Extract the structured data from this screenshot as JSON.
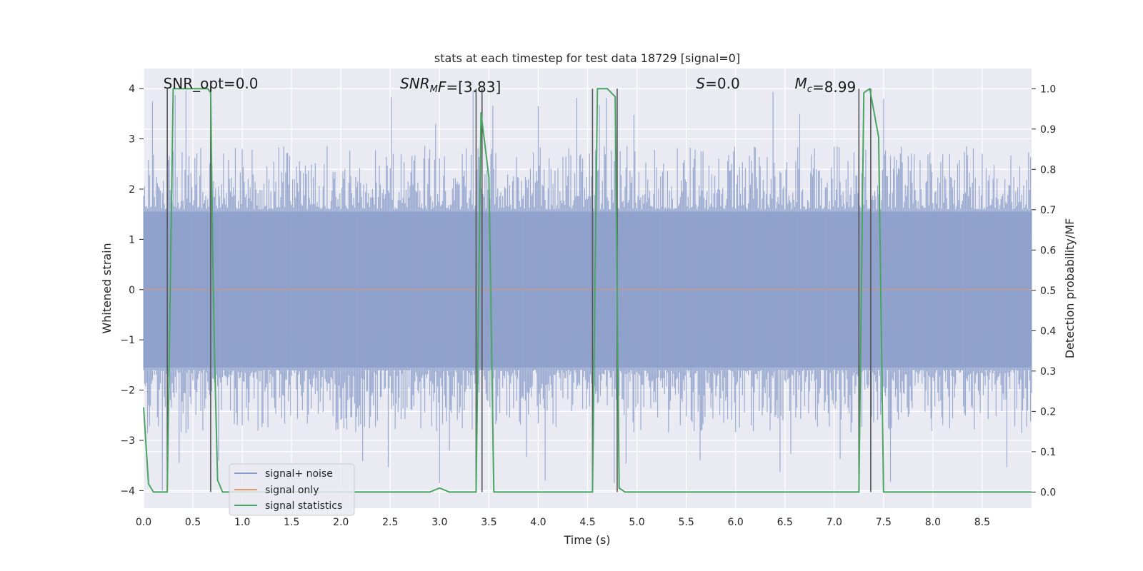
{
  "chart_data": {
    "type": "line",
    "title": "stats at each timestep for test data 18729 [signal=0]",
    "xlabel": "Time (s)",
    "ylabel": "Whitened strain",
    "ylabel_right": "Detection probability/MF",
    "xlim": [
      0.0,
      9.0
    ],
    "ylim": [
      -4.35,
      4.4
    ],
    "ylim_right": [
      -0.04,
      1.05
    ],
    "x_ticks": [
      "0.0",
      "0.5",
      "1.0",
      "1.5",
      "2.0",
      "2.5",
      "3.0",
      "3.5",
      "4.0",
      "4.5",
      "5.0",
      "5.5",
      "6.0",
      "6.5",
      "7.0",
      "7.5",
      "8.0",
      "8.5"
    ],
    "x_tick_values": [
      0.0,
      0.5,
      1.0,
      1.5,
      2.0,
      2.5,
      3.0,
      3.5,
      4.0,
      4.5,
      5.0,
      5.5,
      6.0,
      6.5,
      7.0,
      7.5,
      8.0,
      8.5
    ],
    "y_ticks": [
      "−4",
      "−3",
      "−2",
      "−1",
      "0",
      "1",
      "2",
      "3",
      "4"
    ],
    "y_tick_values": [
      -4,
      -3,
      -2,
      -1,
      0,
      1,
      2,
      3,
      4
    ],
    "y_right_ticks": [
      "0.0",
      "0.1",
      "0.2",
      "0.3",
      "0.4",
      "0.5",
      "0.6",
      "0.7",
      "0.8",
      "0.9",
      "1.0"
    ],
    "y_right_tick_values": [
      0.0,
      0.1,
      0.2,
      0.3,
      0.4,
      0.5,
      0.6,
      0.7,
      0.8,
      0.9,
      1.0
    ],
    "annotations": [
      {
        "id": "snr-opt",
        "parts": [
          {
            "t": "SNR_opt=0.0",
            "it": false
          }
        ],
        "x": 0.2,
        "y": 4.0
      },
      {
        "id": "snr-mf",
        "parts": [
          {
            "t": "SNR",
            "it": true
          },
          {
            "t": "M",
            "it": true,
            "sub": true
          },
          {
            "t": "F",
            "it": true
          },
          {
            "t": "=[3.83]",
            "it": false
          }
        ],
        "x": 2.6,
        "y": 4.0
      },
      {
        "id": "s-val",
        "parts": [
          {
            "t": "S",
            "it": true
          },
          {
            "t": "=0.0",
            "it": false
          }
        ],
        "x": 5.6,
        "y": 4.0
      },
      {
        "id": "mc-val",
        "parts": [
          {
            "t": "M",
            "it": true
          },
          {
            "t": "c",
            "it": true,
            "sub": true
          },
          {
            "t": "=8.99",
            "it": false
          }
        ],
        "x": 6.6,
        "y": 4.0
      }
    ],
    "legend": {
      "location": "lower-left",
      "entries": [
        {
          "name": "signal+ noise",
          "color": "#8da0cb"
        },
        {
          "name": "signal only",
          "color": "#e5936b"
        },
        {
          "name": "signal statistics",
          "color": "#4aa564"
        }
      ]
    },
    "series": [
      {
        "name": "signal+ noise",
        "color": "#8da0cb",
        "style": "dense-noise",
        "x_range": [
          0.0,
          9.0
        ],
        "sample_count": 900,
        "core_amplitude": 1.6,
        "typical_peak": 2.5,
        "max_peak": 4.0
      },
      {
        "name": "signal only",
        "color": "#e5936b",
        "x": [
          0.0,
          9.0
        ],
        "values": [
          0.0,
          0.0
        ]
      },
      {
        "name": "signal statistics",
        "color": "#4aa564",
        "axis": "right",
        "x": [
          0.0,
          0.05,
          0.1,
          0.24,
          0.3,
          0.65,
          0.68,
          0.7,
          0.72,
          0.75,
          0.8,
          0.85,
          0.9,
          1.0,
          1.5,
          2.0,
          2.5,
          2.9,
          3.0,
          3.1,
          3.3,
          3.37,
          3.42,
          3.5,
          3.55,
          3.6,
          4.0,
          4.28,
          4.3,
          4.35,
          4.5,
          4.55,
          4.6,
          4.7,
          4.78,
          4.82,
          4.88,
          4.95,
          5.0,
          5.5,
          5.7,
          6.0,
          7.0,
          7.25,
          7.3,
          7.36,
          7.45,
          7.5,
          8.0,
          9.0
        ],
        "values": [
          0.21,
          0.02,
          0.0,
          0.0,
          1.0,
          1.0,
          0.99,
          0.6,
          0.33,
          0.03,
          0.0,
          0.0,
          0.0,
          0.0,
          0.0,
          0.0,
          0.0,
          0.0,
          0.01,
          0.0,
          0.0,
          0.0,
          0.94,
          0.78,
          0.0,
          0.0,
          0.0,
          0.0,
          0.0,
          0.0,
          0.0,
          0.0,
          1.0,
          1.0,
          0.98,
          0.01,
          0.0,
          0.0,
          0.0,
          0.0,
          0.0,
          0.0,
          0.0,
          0.0,
          0.99,
          1.0,
          0.88,
          0.0,
          0.0,
          0.0
        ]
      }
    ],
    "vlines": [
      0.24,
      0.68,
      3.37,
      3.43,
      4.55,
      4.8,
      7.25,
      7.37
    ],
    "vline_color": "#555555"
  }
}
